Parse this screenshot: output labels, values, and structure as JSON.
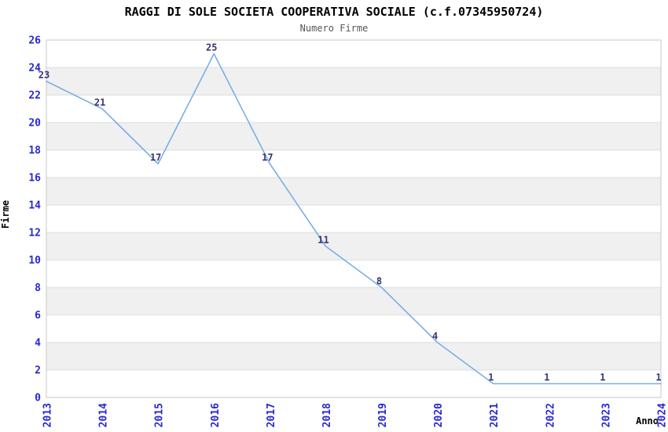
{
  "chart_data": {
    "type": "line",
    "title": "RAGGI DI SOLE SOCIETA COOPERATIVA SOCIALE (c.f.07345950724)",
    "subtitle": "Numero Firme",
    "xlabel": "Anno",
    "ylabel": "Firme",
    "categories": [
      "2013",
      "2014",
      "2015",
      "2016",
      "2017",
      "2018",
      "2019",
      "2020",
      "2021",
      "2022",
      "2023",
      "2024"
    ],
    "values": [
      23,
      21,
      17,
      25,
      17,
      11,
      8,
      4,
      1,
      1,
      1,
      1
    ],
    "ylim": [
      0,
      26
    ],
    "ytick_step": 2,
    "yticks": [
      0,
      2,
      4,
      6,
      8,
      10,
      12,
      14,
      16,
      18,
      20,
      22,
      24,
      26
    ],
    "legend": "none",
    "grid": "horizontal-bands",
    "colors": {
      "line": "#79afe5",
      "tick_labels": "#2727d3",
      "value_labels": "#333375",
      "band": "#f0f0f0",
      "gridline": "#dcdcdc",
      "border": "#c9c9c9",
      "title": "#000000",
      "subtitle": "#565656",
      "axis_titles": "#000000"
    }
  }
}
